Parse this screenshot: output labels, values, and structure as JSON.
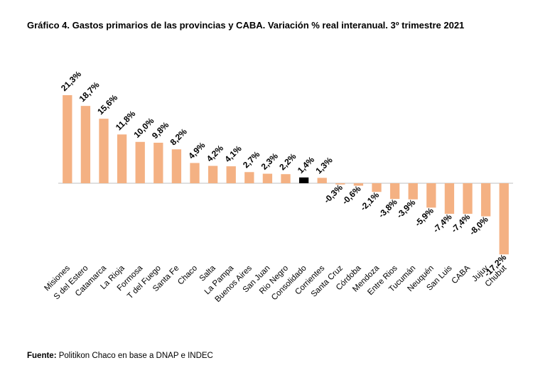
{
  "chart_data": {
    "type": "bar",
    "title": "Gráfico 4. Gastos primarios de las provincias y CABA. Variación % real interanual. 3º trimestre 2021",
    "categories": [
      "Misiones",
      "S del Estero",
      "Catamarca",
      "La Rioja",
      "Formosa",
      "T del Fuego",
      "Santa Fe",
      "Chaco",
      "Salta",
      "La Pampa",
      "Buenos Aires",
      "San Juan",
      "Rio Negro",
      "Consolidado",
      "Corrientes",
      "Santa Cruz",
      "Córdoba",
      "Mendoza",
      "Entre Rios",
      "Tucumán",
      "Neuquén",
      "San Luis",
      "CABA",
      "Jujuy",
      "Chubut"
    ],
    "values": [
      21.3,
      18.7,
      15.6,
      11.8,
      10.0,
      9.8,
      8.2,
      4.9,
      4.2,
      4.1,
      2.7,
      2.3,
      2.2,
      1.4,
      1.3,
      -0.3,
      -0.6,
      -2.1,
      -3.8,
      -3.9,
      -5.9,
      -7.4,
      -7.4,
      -8.0,
      -17.2
    ],
    "value_labels": [
      "21,3%",
      "18,7%",
      "15,6%",
      "11,8%",
      "10,0%",
      "9,8%",
      "8,2%",
      "4,9%",
      "4,2%",
      "4,1%",
      "2,7%",
      "2,3%",
      "2,2%",
      "1,4%",
      "1,3%",
      "-0,3%",
      "-0,6%",
      "-2,1%",
      "-3,8%",
      "-3,9%",
      "-5,9%",
      "-7,4%",
      "-7,4%",
      "-8,0%",
      "-17,2%"
    ],
    "colors": [
      "#f4b183",
      "#f4b183",
      "#f4b183",
      "#f4b183",
      "#f4b183",
      "#f4b183",
      "#f4b183",
      "#f4b183",
      "#f4b183",
      "#f4b183",
      "#f4b183",
      "#f4b183",
      "#f4b183",
      "#000000",
      "#f4b183",
      "#f4b183",
      "#f4b183",
      "#f4b183",
      "#f4b183",
      "#f4b183",
      "#f4b183",
      "#f4b183",
      "#f4b183",
      "#f4b183",
      "#f4b183"
    ]
  },
  "source": {
    "label": "Fuente:",
    "text": "Politikon Chaco en base a DNAP e INDEC"
  }
}
